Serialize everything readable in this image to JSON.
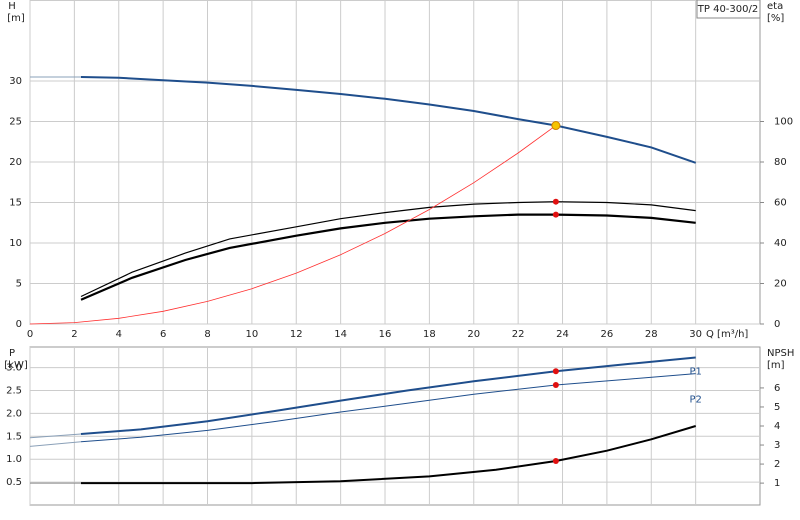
{
  "chart_data": [
    {
      "type": "line",
      "title": "TP 40-300/2",
      "y_label": "H",
      "y_unit": "[m]",
      "y2_label": "eta",
      "y2_unit": "[%]",
      "x_label": "Q [m³/h]",
      "xlim": [
        0,
        32.9
      ],
      "xticks": [
        0,
        2,
        4,
        6,
        8,
        10,
        12,
        14,
        16,
        18,
        20,
        22,
        24,
        26,
        28,
        30
      ],
      "ylim": [
        0,
        40
      ],
      "yticks": [
        0,
        5,
        10,
        15,
        20,
        25,
        30
      ],
      "y2lim": [
        0,
        160
      ],
      "y2ticks": [
        0,
        20,
        40,
        60,
        80,
        100
      ],
      "grid": true,
      "series": [
        {
          "color": "#8aa0b8",
          "width": 1,
          "x": [
            0,
            2.3
          ],
          "values": [
            30.5,
            30.5
          ]
        },
        {
          "color": "#1f4e8c",
          "width": 2,
          "x": [
            2.3,
            4,
            6,
            8,
            10,
            12,
            14,
            16,
            18,
            20,
            22,
            23.7,
            26,
            28,
            30
          ],
          "values": [
            30.5,
            30.4,
            30.1,
            29.8,
            29.4,
            28.9,
            28.4,
            27.8,
            27.1,
            26.3,
            25.3,
            24.5,
            23.1,
            21.8,
            19.9
          ]
        },
        {
          "color": "#000000",
          "width": 1.2,
          "axis": "y2",
          "x": [
            2.3,
            4.6,
            7,
            9,
            12,
            14,
            16,
            18,
            20,
            22,
            23.7,
            26,
            28,
            30
          ],
          "values": [
            13.6,
            25.6,
            35,
            42,
            48,
            52,
            55,
            57.6,
            59.2,
            60,
            60.4,
            60,
            58.8,
            56
          ]
        },
        {
          "color": "#000000",
          "width": 2.2,
          "axis": "y2",
          "x": [
            2.3,
            4.6,
            7,
            9,
            12,
            14,
            16,
            18,
            20,
            22,
            23.7,
            26,
            28,
            30
          ],
          "values": [
            12,
            22.8,
            31.6,
            37.6,
            43.6,
            47.2,
            50,
            52,
            53.2,
            54,
            54,
            53.6,
            52.4,
            50
          ]
        },
        {
          "color": "#ff3030",
          "width": 0.8,
          "x": [
            0,
            2,
            4,
            6,
            8,
            10,
            12,
            14,
            16,
            18,
            20,
            22,
            23.7
          ],
          "values": [
            0,
            0.17,
            0.7,
            1.57,
            2.79,
            4.36,
            6.28,
            8.55,
            11.17,
            14.13,
            17.45,
            21.11,
            24.5
          ]
        },
        {
          "mode": "marker",
          "color": "#f5c400",
          "x": [
            23.7
          ],
          "values": [
            24.5
          ]
        },
        {
          "mode": "marker",
          "color": "#e01010",
          "axis": "y2",
          "x": [
            23.7,
            23.7
          ],
          "values": [
            60.4,
            54
          ]
        }
      ]
    },
    {
      "type": "line",
      "y_label": "P",
      "y_unit": "[kW]",
      "y2_label": "NPSH",
      "y2_unit": "[m]",
      "xlim": [
        0,
        32.9
      ],
      "xticks": [
        0,
        2,
        4,
        6,
        8,
        10,
        12,
        14,
        16,
        18,
        20,
        22,
        24,
        26,
        28,
        30
      ],
      "ylim": [
        0,
        3.45
      ],
      "yticks": [
        0.5,
        {
          "value": 1,
          "label": "1.0"
        },
        1.5,
        {
          "value": 2,
          "label": "2.0"
        },
        2.5,
        {
          "value": 3,
          "label": "3.0"
        }
      ],
      "y2lim": [
        -0.15,
        8.15
      ],
      "y2ticks": [
        1,
        2,
        3,
        4,
        5,
        6
      ],
      "grid": true,
      "series": [
        {
          "color": "#8aa0b8",
          "width": 1,
          "x": [
            0,
            2.3
          ],
          "values": [
            1.47,
            1.55
          ]
        },
        {
          "name": "P1",
          "color": "#1f4e8c",
          "width": 2,
          "x": [
            2.3,
            5,
            8,
            11,
            14,
            17,
            20,
            23.7,
            27,
            30
          ],
          "values": [
            1.55,
            1.65,
            1.83,
            2.05,
            2.28,
            2.5,
            2.7,
            2.92,
            3.08,
            3.22
          ]
        },
        {
          "color": "#8aa0b8",
          "width": 1,
          "x": [
            0,
            2.3
          ],
          "values": [
            1.28,
            1.38
          ]
        },
        {
          "name": "P2",
          "color": "#1f4e8c",
          "width": 1,
          "x": [
            2.3,
            5,
            8,
            11,
            14,
            17,
            20,
            23.7,
            27,
            30
          ],
          "values": [
            1.38,
            1.48,
            1.63,
            1.82,
            2.03,
            2.22,
            2.42,
            2.62,
            2.75,
            2.87
          ]
        },
        {
          "color": "#8a8a8a",
          "width": 1,
          "axis": "y2",
          "x": [
            0,
            2.3
          ],
          "values": [
            1,
            1
          ]
        },
        {
          "color": "#000000",
          "width": 2,
          "axis": "y2",
          "x": [
            2.3,
            6,
            10,
            14,
            18,
            21,
            23.7,
            26,
            28,
            30
          ],
          "values": [
            1,
            1,
            1,
            1.1,
            1.35,
            1.7,
            2.16,
            2.7,
            3.3,
            4
          ]
        },
        {
          "mode": "marker",
          "color": "#e01010",
          "x": [
            23.7,
            23.7
          ],
          "values": [
            2.92,
            2.62
          ]
        },
        {
          "mode": "marker",
          "color": "#e01010",
          "axis": "y2",
          "x": [
            23.7
          ],
          "values": [
            2.16
          ]
        }
      ]
    }
  ]
}
